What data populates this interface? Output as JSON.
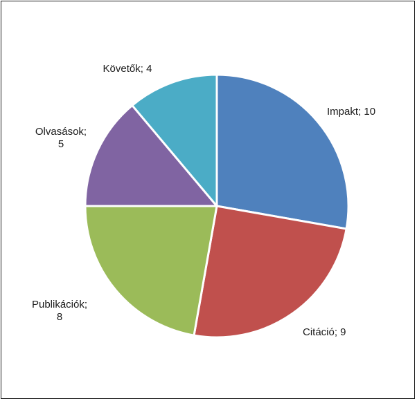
{
  "chart_data": {
    "type": "pie",
    "title": "",
    "slices": [
      {
        "label": "Impakt; 10",
        "lines": [
          "Impakt; 10"
        ],
        "name": "Impakt",
        "value": 10,
        "color": "#4f81bd"
      },
      {
        "label": "Citáció; 9",
        "lines": [
          "Citáció; 9"
        ],
        "name": "Citáció",
        "value": 9,
        "color": "#c0504d"
      },
      {
        "label": "Publikációk; 8",
        "lines": [
          "Publikációk;",
          "8"
        ],
        "name": "Publikációk",
        "value": 8,
        "color": "#9bbb59"
      },
      {
        "label": "Olvasások; 5",
        "lines": [
          "Olvasások;",
          "5"
        ],
        "name": "Olvasások",
        "value": 5,
        "color": "#8064a2"
      },
      {
        "label": "Követők; 4",
        "lines": [
          "Követők; 4"
        ],
        "name": "Követők",
        "value": 4,
        "color": "#4bacc6"
      }
    ],
    "legend": "none",
    "start_angle": "12 o'clock",
    "direction": "clockwise"
  }
}
